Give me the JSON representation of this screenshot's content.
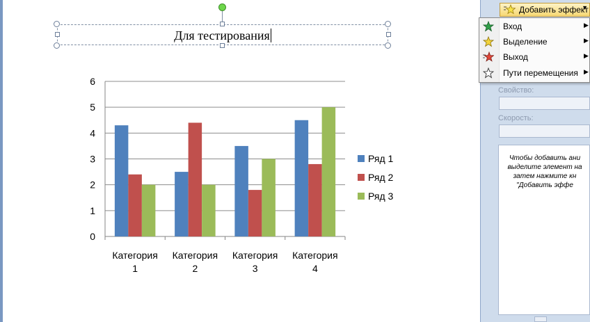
{
  "slide": {
    "title_text": "Для тестирования"
  },
  "chart_data": {
    "type": "bar",
    "categories": [
      "Категория 1",
      "Категория 2",
      "Категория 3",
      "Категория 4"
    ],
    "category_lines": [
      [
        "Категория",
        "1"
      ],
      [
        "Категория",
        "2"
      ],
      [
        "Категория",
        "3"
      ],
      [
        "Категория",
        "4"
      ]
    ],
    "series": [
      {
        "name": "Ряд 1",
        "values": [
          4.3,
          2.5,
          3.5,
          4.5
        ],
        "color": "#4f81bd"
      },
      {
        "name": "Ряд 2",
        "values": [
          2.4,
          4.4,
          1.8,
          2.8
        ],
        "color": "#c0504d"
      },
      {
        "name": "Ряд 3",
        "values": [
          2,
          2,
          3,
          5
        ],
        "color": "#9bbb59"
      }
    ],
    "ylim": [
      0,
      6
    ],
    "yticks": [
      "0",
      "1",
      "2",
      "3",
      "4",
      "5",
      "6"
    ],
    "grid": true,
    "legend": "right",
    "title": "",
    "xlabel": "",
    "ylabel": ""
  },
  "panel": {
    "add_effect_label": "Добавить эффект",
    "menu_items": [
      {
        "label": "Вход",
        "icon": "star-green-icon"
      },
      {
        "label": "Выделение",
        "icon": "star-yellow-icon"
      },
      {
        "label": "Выход",
        "icon": "star-red-icon"
      },
      {
        "label": "Пути перемещения",
        "icon": "star-outline-icon"
      }
    ],
    "property_label": "Свойство:",
    "speed_label": "Скорость:",
    "hint_text": "Чтобы добавить ани\nвыделите элемент на\nзатем нажмите кн\n\"Добавить эффе"
  }
}
